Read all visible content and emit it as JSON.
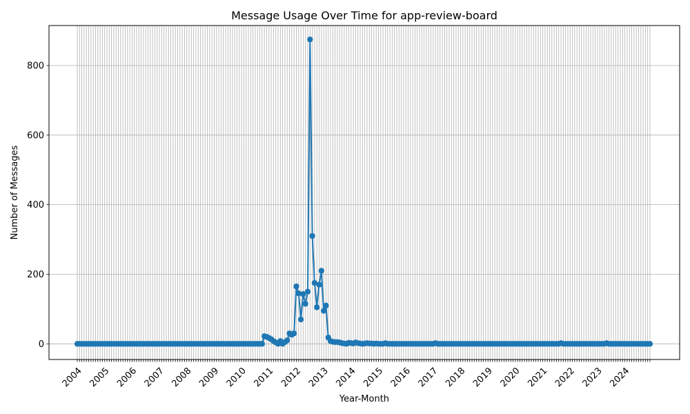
{
  "chart_data": {
    "type": "line",
    "title": "Message Usage Over Time for app-review-board",
    "xlabel": "Year-Month",
    "ylabel": "Number of Messages",
    "x_start": "2004-01",
    "x_end": "2024-12",
    "x_tick_labels": [
      "2004",
      "2005",
      "2006",
      "2007",
      "2008",
      "2009",
      "2010",
      "2011",
      "2012",
      "2013",
      "2014",
      "2015",
      "2016",
      "2017",
      "2018",
      "2019",
      "2020",
      "2021",
      "2022",
      "2023",
      "2024"
    ],
    "y_ticks": [
      0,
      200,
      400,
      600,
      800
    ],
    "ylim": [
      -45,
      915
    ],
    "grid": true,
    "color": "#1f77b4",
    "series": [
      {
        "points": [
          [
            "2010-11",
            22
          ],
          [
            "2010-12",
            20
          ],
          [
            "2011-01",
            17
          ],
          [
            "2011-02",
            13
          ],
          [
            "2011-03",
            8
          ],
          [
            "2011-04",
            4
          ],
          [
            "2011-05",
            0
          ],
          [
            "2011-06",
            8
          ],
          [
            "2011-07",
            0
          ],
          [
            "2011-08",
            5
          ],
          [
            "2011-09",
            10
          ],
          [
            "2011-10",
            30
          ],
          [
            "2011-11",
            26
          ],
          [
            "2011-12",
            30
          ],
          [
            "2012-01",
            165
          ],
          [
            "2012-02",
            145
          ],
          [
            "2012-03",
            70
          ],
          [
            "2012-04",
            143
          ],
          [
            "2012-05",
            115
          ],
          [
            "2012-06",
            150
          ],
          [
            "2012-07",
            875
          ],
          [
            "2012-08",
            310
          ],
          [
            "2012-09",
            175
          ],
          [
            "2012-10",
            105
          ],
          [
            "2012-11",
            170
          ],
          [
            "2012-12",
            210
          ],
          [
            "2013-01",
            95
          ],
          [
            "2013-02",
            110
          ],
          [
            "2013-03",
            18
          ],
          [
            "2013-04",
            8
          ],
          [
            "2013-05",
            6
          ],
          [
            "2013-06",
            5
          ],
          [
            "2013-07",
            5
          ],
          [
            "2013-08",
            4
          ],
          [
            "2013-09",
            2
          ],
          [
            "2013-10",
            1
          ],
          [
            "2013-11",
            0
          ],
          [
            "2013-12",
            3
          ],
          [
            "2014-01",
            2
          ],
          [
            "2014-02",
            1
          ],
          [
            "2014-03",
            4
          ],
          [
            "2014-04",
            2
          ],
          [
            "2014-05",
            1
          ],
          [
            "2014-06",
            0
          ],
          [
            "2014-07",
            1
          ],
          [
            "2014-08",
            2
          ],
          [
            "2014-09",
            1
          ],
          [
            "2014-10",
            1
          ],
          [
            "2014-11",
            0
          ],
          [
            "2014-12",
            1
          ],
          [
            "2015-01",
            0
          ],
          [
            "2015-02",
            0
          ],
          [
            "2015-03",
            0
          ],
          [
            "2015-04",
            2
          ],
          [
            "2015-05",
            0
          ],
          [
            "2017-02",
            2
          ],
          [
            "2021-09",
            2
          ],
          [
            "2023-05",
            2
          ]
        ]
      }
    ]
  }
}
